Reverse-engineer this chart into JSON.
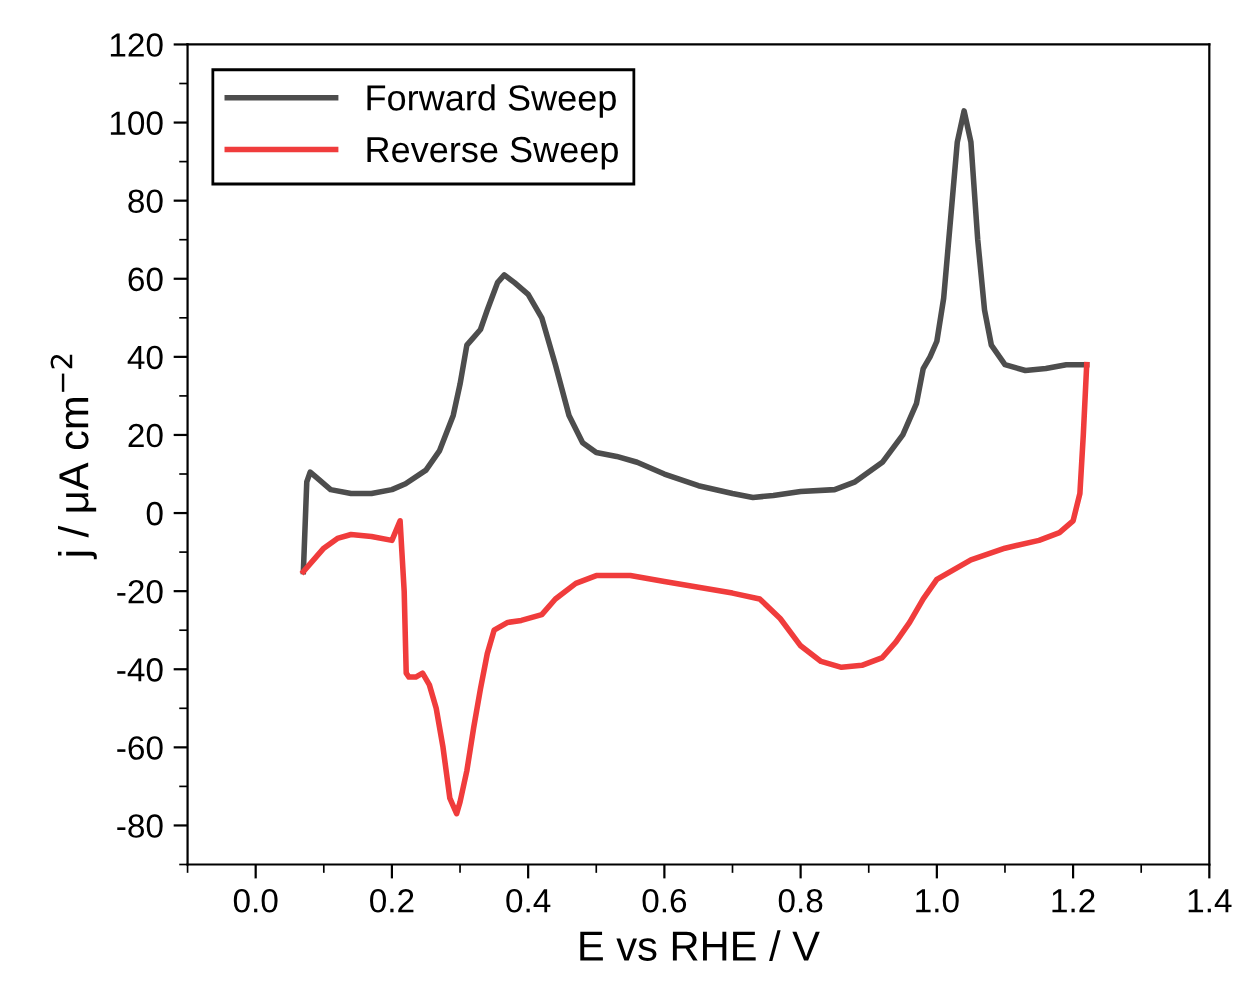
{
  "chart_data": {
    "type": "line",
    "xlabel": "E vs RHE / V",
    "ylabel": "j / μA cm$^{−2}$",
    "xlim": [
      -0.1,
      1.4
    ],
    "xticks": [
      {
        "value": 0.0,
        "label": "0.0"
      },
      0.2,
      0.4,
      0.6,
      0.8,
      {
        "value": 1.0,
        "label": "1.0"
      },
      1.2,
      1.4
    ],
    "ylim": [
      -90,
      120
    ],
    "yticks": [
      -80,
      -60,
      -40,
      -20,
      0,
      20,
      40,
      60,
      80,
      100,
      120
    ],
    "grid": false,
    "legend": "top left",
    "marker": "none",
    "line_style": "solid",
    "series": [
      {
        "name": "Forward Sweep",
        "color": "#4d4d4d",
        "x": [
          0.07,
          0.075,
          0.08,
          0.09,
          0.11,
          0.14,
          0.17,
          0.2,
          0.22,
          0.25,
          0.27,
          0.29,
          0.3,
          0.31,
          0.32,
          0.33,
          0.34,
          0.355,
          0.365,
          0.38,
          0.4,
          0.42,
          0.44,
          0.46,
          0.48,
          0.5,
          0.53,
          0.56,
          0.6,
          0.65,
          0.7,
          0.73,
          0.76,
          0.8,
          0.85,
          0.88,
          0.92,
          0.95,
          0.97,
          0.98,
          0.99,
          1.0,
          1.01,
          1.02,
          1.03,
          1.04,
          1.05,
          1.06,
          1.07,
          1.08,
          1.1,
          1.13,
          1.16,
          1.19,
          1.22
        ],
        "values": [
          -15,
          8,
          10.5,
          9,
          6,
          5,
          5,
          6,
          7.5,
          11,
          16,
          25,
          33,
          43,
          45,
          47,
          52,
          59,
          61,
          59,
          56,
          50,
          38,
          25,
          18,
          15.5,
          14.5,
          13,
          10,
          7,
          5,
          4,
          4.5,
          5.5,
          6,
          8,
          13,
          20,
          28,
          37,
          40,
          44,
          55,
          75,
          95,
          103,
          95,
          70,
          52,
          43,
          38,
          36.5,
          37,
          38,
          38
        ]
      },
      {
        "name": "Reverse Sweep",
        "color": "#f03c3c",
        "x": [
          1.22,
          1.215,
          1.21,
          1.2,
          1.18,
          1.15,
          1.1,
          1.05,
          1.0,
          0.98,
          0.96,
          0.94,
          0.92,
          0.89,
          0.86,
          0.83,
          0.8,
          0.77,
          0.74,
          0.7,
          0.65,
          0.6,
          0.55,
          0.5,
          0.47,
          0.44,
          0.42,
          0.39,
          0.37,
          0.35,
          0.34,
          0.33,
          0.32,
          0.31,
          0.3,
          0.295,
          0.285,
          0.275,
          0.265,
          0.255,
          0.245,
          0.235,
          0.225,
          0.221,
          0.218,
          0.212,
          0.2,
          0.17,
          0.14,
          0.12,
          0.1,
          0.085,
          0.07
        ],
        "values": [
          38,
          20,
          5,
          -2,
          -5,
          -7,
          -9,
          -12,
          -17,
          -22,
          -28,
          -33,
          -37,
          -39,
          -39.5,
          -38,
          -34,
          -27,
          -22,
          -20.5,
          -19,
          -17.5,
          -16,
          -16,
          -18,
          -22,
          -26,
          -27.5,
          -28,
          -30,
          -36,
          -45,
          -55,
          -66,
          -74,
          -77,
          -73,
          -60,
          -50,
          -44,
          -41,
          -42,
          -42,
          -41,
          -20,
          -2,
          -7,
          -6,
          -5.5,
          -6.5,
          -9,
          -12,
          -15
        ]
      }
    ]
  }
}
